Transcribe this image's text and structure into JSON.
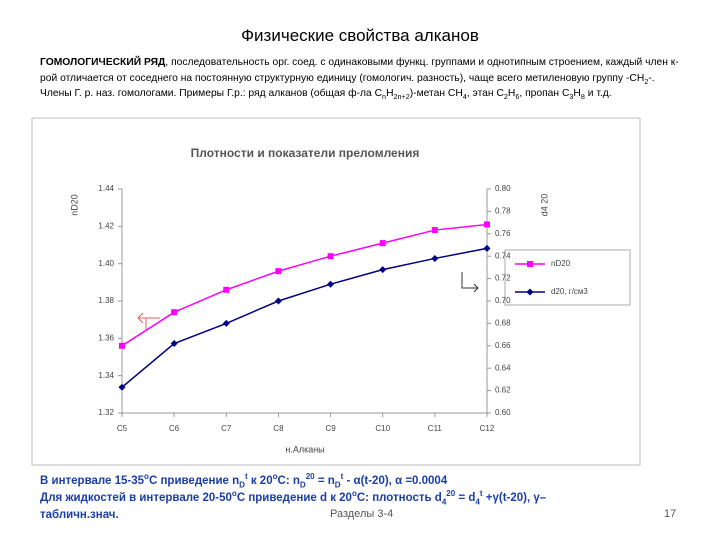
{
  "title": "Физические свойства алканов",
  "paragraph": [
    "ГОМОЛОГИЧЕСКИЙ РЯД",
    ", последовательность орг. соед. с одинаковыми функц. группами и однотипным строением, каждый член к-рой отличается от соседнего на постоянную структурную единицу (гомологич. разность), чаще всего метиленовую группу -CH",
    "2",
    "-. Члены Г. р. наз. гомологами. Примеры Г.р.: ряд алканов (общая ф-ла C",
    "n",
    "H",
    "2n+2",
    ")-метан CH",
    "4",
    ", этан C",
    "2",
    "H",
    "6",
    ", пропан C",
    "3",
    "H",
    "8",
    " и т.д."
  ],
  "notes": [
    [
      "В интервале 15-35",
      "o",
      "С приведение n",
      "D",
      "t",
      " к 20",
      "o",
      "С: n",
      "D",
      "20",
      " = n",
      "D",
      "t",
      " - α(t-20), α =0.0004"
    ],
    [
      "Для жидкостей в интервале 20-50",
      "o",
      "С приведение d к 20",
      "o",
      "С: плотность d",
      "4",
      "20",
      " = d",
      "4",
      "t",
      " +γ(t-20), γ–"
    ],
    [
      "табличн.знач."
    ]
  ],
  "footer": "Разделы 3-4",
  "page_number": "17",
  "chart_data": {
    "type": "line",
    "title": "Плотности и показатели преломления",
    "xlabel": "н.Алканы",
    "ylabel": "nD20",
    "y2label": "d4 20",
    "categories": [
      "C5",
      "C6",
      "C7",
      "C8",
      "C9",
      "C10",
      "C11",
      "C12"
    ],
    "ylim": [
      1.32,
      1.44
    ],
    "yticks": [
      1.32,
      1.34,
      1.36,
      1.38,
      {
        "value": 1.4,
        "label": "1.40"
      },
      1.42,
      1.44
    ],
    "y2lim": [
      0.6,
      0.8
    ],
    "y2ticks": [
      {
        "value": 0.6,
        "label": "0.60"
      },
      0.62,
      0.64,
      0.66,
      0.68,
      {
        "value": 0.7,
        "label": "0.70"
      },
      0.72,
      0.74,
      0.76,
      0.78,
      {
        "value": 0.8,
        "label": "0.80"
      }
    ],
    "series": [
      {
        "name": "nD20",
        "color": "#ff00ff",
        "values": [
          1.356,
          1.374,
          1.386,
          1.396,
          1.404,
          1.411,
          1.418,
          1.421
        ]
      },
      {
        "name": "d20, г/см3",
        "color": "#000080",
        "axis": "y2",
        "values": [
          0.623,
          0.662,
          0.68,
          0.7,
          0.715,
          0.728,
          0.738,
          0.747
        ]
      }
    ]
  }
}
